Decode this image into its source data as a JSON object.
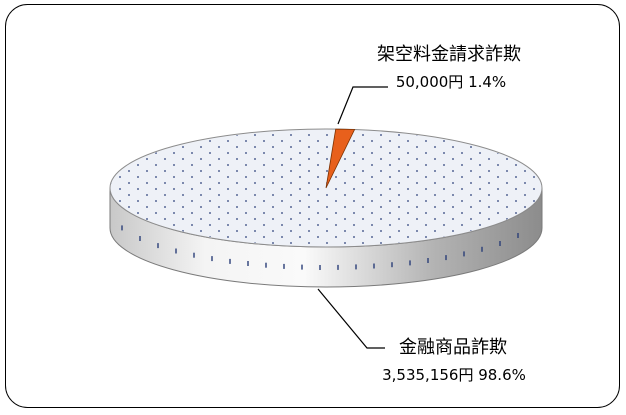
{
  "chart_data": {
    "type": "pie",
    "style": "3d",
    "slices": [
      {
        "label": "架空料金請求詐欺",
        "value_text": "50,000円",
        "percent_text": "1.4%",
        "value": 50000,
        "percent": 1.4,
        "color": "#e8601c"
      },
      {
        "label": "金融商品詐欺",
        "value_text": "3,535,156円",
        "percent_text": "98.6%",
        "value": 3535156,
        "percent": 98.6,
        "color": "#eef1f7"
      }
    ]
  },
  "labels": {
    "small": {
      "name": "架空料金請求詐欺",
      "value": "50,000円 1.4%"
    },
    "large": {
      "name": "金融商品詐欺",
      "value": "3,535,156円 98.6%"
    }
  }
}
